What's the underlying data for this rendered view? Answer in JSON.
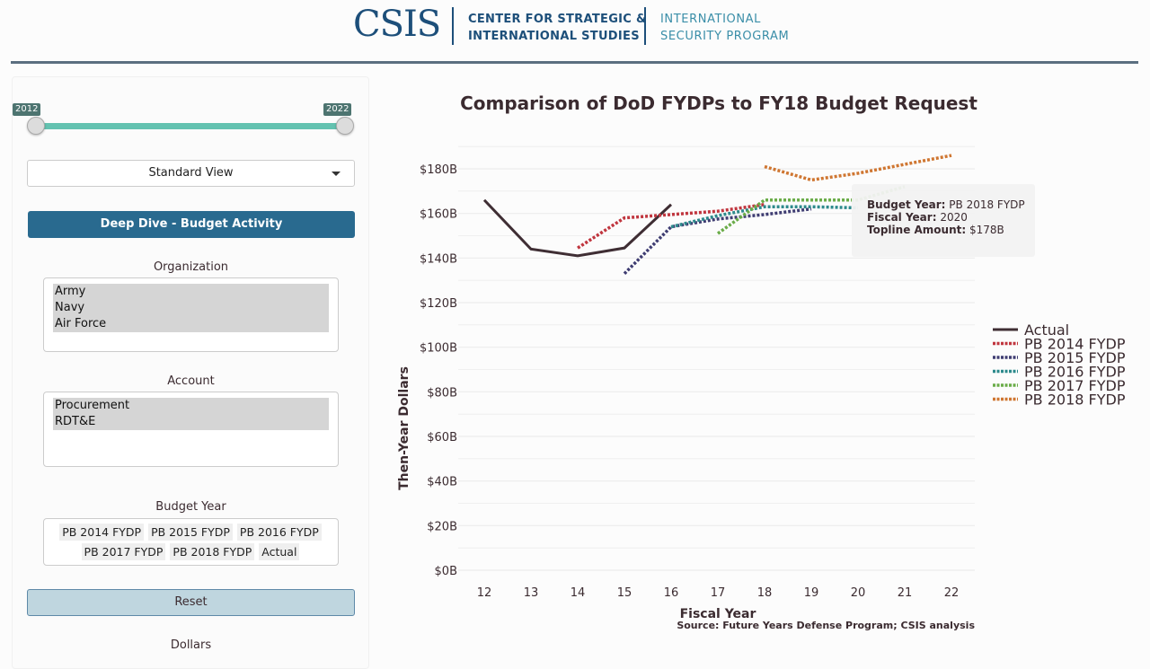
{
  "header": {
    "logo": "CSIS",
    "org_line1": "CENTER FOR STRATEGIC &",
    "org_line2": "INTERNATIONAL STUDIES",
    "program_line1": "INTERNATIONAL",
    "program_line2": "SECURITY PROGRAM"
  },
  "sidebar": {
    "year_range": {
      "min": "2012",
      "max": "2022",
      "low": "2012",
      "high": "2022"
    },
    "view_select": "Standard View",
    "deep_dive_button": "Deep Dive - Budget Activity",
    "organization": {
      "label": "Organization",
      "selected": [
        "Army",
        "Navy",
        "Air Force"
      ]
    },
    "account": {
      "label": "Account",
      "selected": [
        "Procurement",
        "RDT&E"
      ]
    },
    "budget_year": {
      "label": "Budget Year",
      "chips": [
        "PB 2014 FYDP",
        "PB 2015 FYDP",
        "PB 2016 FYDP",
        "PB 2017 FYDP",
        "PB 2018 FYDP",
        "Actual"
      ]
    },
    "reset_button": "Reset",
    "dollars_label": "Dollars"
  },
  "tooltip": {
    "budget_year_label": "Budget Year:",
    "budget_year_value": "PB 2018 FYDP",
    "fiscal_year_label": "Fiscal Year:",
    "fiscal_year_value": "2020",
    "topline_label": "Topline Amount:",
    "topline_value": "$178B"
  },
  "chart_data": {
    "type": "line",
    "title": "Comparison of DoD FYDPs to FY18 Budget Request",
    "xlabel": "Fiscal Year",
    "ylabel": "Then-Year Dollars",
    "source": "Source: Future Years Defense Program; CSIS analysis",
    "x": [
      12,
      13,
      14,
      15,
      16,
      17,
      18,
      19,
      20,
      21,
      22
    ],
    "xlim": [
      12,
      22
    ],
    "ylim": [
      0,
      180
    ],
    "y_ticks": [
      0,
      20,
      40,
      60,
      80,
      100,
      120,
      140,
      160,
      180
    ],
    "y_tick_labels": [
      "$0B",
      "$20B",
      "$40B",
      "$60B",
      "$80B",
      "$100B",
      "$120B",
      "$140B",
      "$160B",
      "$180B"
    ],
    "grid": true,
    "legend_position": "right",
    "series": [
      {
        "name": "Actual",
        "color": "#3f2e34",
        "style": "solid",
        "x": [
          12,
          13,
          14,
          15,
          16
        ],
        "values": [
          166,
          144,
          141,
          144.5,
          164
        ]
      },
      {
        "name": "PB 2014 FYDP",
        "color": "#c0363f",
        "style": "dotted",
        "x": [
          14,
          15,
          16,
          17,
          18
        ],
        "values": [
          144.5,
          158,
          159.5,
          161,
          164
        ]
      },
      {
        "name": "PB 2015 FYDP",
        "color": "#3f3d72",
        "style": "dotted",
        "x": [
          15,
          16,
          17,
          18,
          19
        ],
        "values": [
          133,
          154,
          157.5,
          159.5,
          162
        ]
      },
      {
        "name": "PB 2016 FYDP",
        "color": "#2d8a8c",
        "style": "dotted",
        "x": [
          16,
          17,
          18,
          19,
          20
        ],
        "values": [
          154,
          159,
          163,
          163,
          162.5
        ]
      },
      {
        "name": "PB 2017 FYDP",
        "color": "#6aac48",
        "style": "dotted",
        "x": [
          17,
          18,
          19,
          20,
          21
        ],
        "values": [
          151,
          166,
          166,
          166,
          172
        ]
      },
      {
        "name": "PB 2018 FYDP",
        "color": "#cf7631",
        "style": "dotted",
        "x": [
          18,
          19,
          20,
          21,
          22
        ],
        "values": [
          181,
          175,
          178,
          182,
          186
        ]
      }
    ]
  }
}
